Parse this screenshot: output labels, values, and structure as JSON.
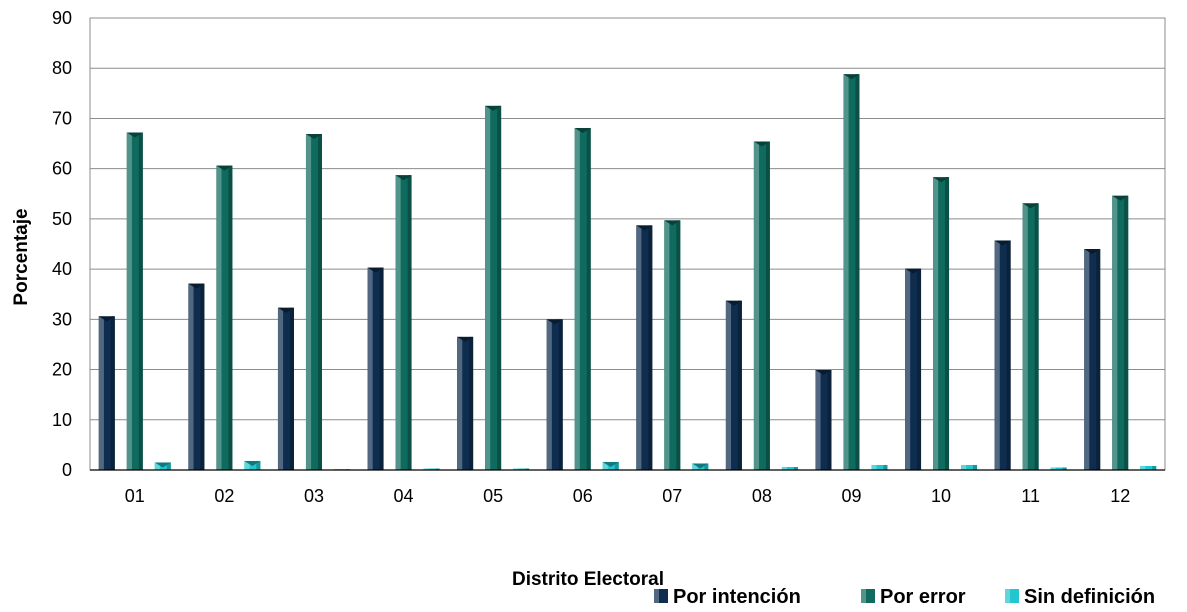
{
  "chart_data": {
    "type": "bar",
    "xlabel": "Distrito Electoral",
    "ylabel": "Porcentaje",
    "ylim": [
      0,
      90
    ],
    "yticks": [
      0,
      10,
      20,
      30,
      40,
      50,
      60,
      70,
      80,
      90
    ],
    "grid": true,
    "legend_position": "bottom-right",
    "categories": [
      "01",
      "02",
      "03",
      "04",
      "05",
      "06",
      "07",
      "08",
      "09",
      "10",
      "11",
      "12"
    ],
    "series": [
      {
        "name": "Por intención",
        "color": "#0f2d4f",
        "values": [
          30.6,
          37.1,
          32.3,
          40.3,
          26.5,
          30.0,
          48.7,
          33.7,
          19.9,
          40.1,
          45.7,
          44.0
        ]
      },
      {
        "name": "Por error",
        "color": "#0f6b5e",
        "values": [
          67.2,
          60.6,
          66.9,
          58.7,
          72.5,
          68.1,
          49.7,
          65.4,
          78.8,
          58.3,
          53.1,
          54.6
        ]
      },
      {
        "name": "Sin definición",
        "color": "#22c6cf",
        "values": [
          1.5,
          1.8,
          0.1,
          0.3,
          0.3,
          1.6,
          1.3,
          0.6,
          1.0,
          1.0,
          0.5,
          0.8
        ]
      }
    ]
  }
}
